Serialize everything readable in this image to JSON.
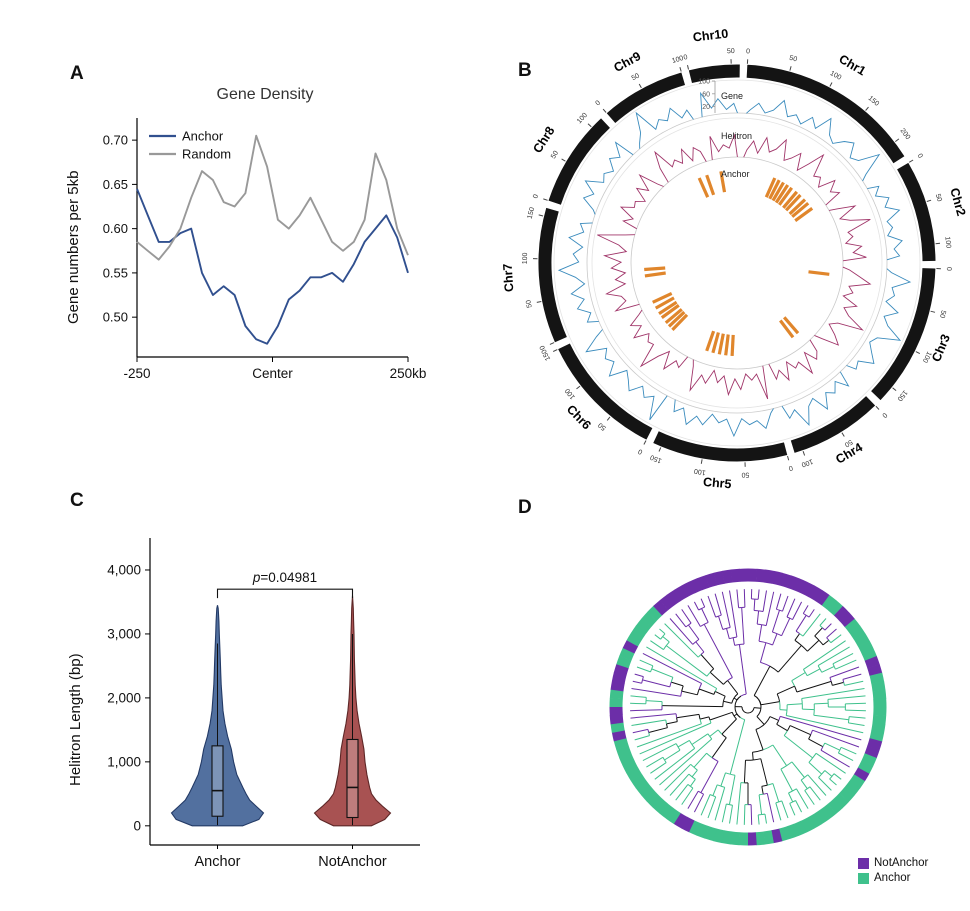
{
  "figure": {
    "background": "#ffffff",
    "panels": {
      "a_label": "A",
      "b_label": "B",
      "c_label": "C",
      "d_label": "D"
    }
  },
  "chart_data": [
    {
      "id": "gene_density",
      "type": "line",
      "title": "Gene Density",
      "ylabel": "Gene numbers per 5kb",
      "xlim": [
        -250,
        250
      ],
      "ylim": [
        0.455,
        0.725
      ],
      "yticks": [
        0.5,
        0.55,
        0.6,
        0.65,
        0.7
      ],
      "xticks": [
        {
          "v": -250,
          "label": "-250"
        },
        {
          "v": 0,
          "label": "Center"
        },
        {
          "v": 250,
          "label": "250kb"
        }
      ],
      "x": [
        -250,
        -230,
        -210,
        -190,
        -170,
        -150,
        -130,
        -110,
        -90,
        -70,
        -50,
        -30,
        -10,
        10,
        30,
        50,
        70,
        90,
        110,
        130,
        150,
        170,
        190,
        210,
        230,
        250
      ],
      "series": [
        {
          "name": "Anchor",
          "color": "#31508f",
          "values": [
            0.645,
            0.615,
            0.585,
            0.585,
            0.595,
            0.6,
            0.55,
            0.525,
            0.535,
            0.525,
            0.49,
            0.475,
            0.47,
            0.49,
            0.52,
            0.53,
            0.545,
            0.545,
            0.55,
            0.54,
            0.56,
            0.585,
            0.6,
            0.615,
            0.59,
            0.55
          ]
        },
        {
          "name": "Random",
          "color": "#999999",
          "values": [
            0.585,
            0.575,
            0.565,
            0.58,
            0.6,
            0.635,
            0.665,
            0.655,
            0.63,
            0.625,
            0.64,
            0.705,
            0.67,
            0.61,
            0.6,
            0.615,
            0.635,
            0.61,
            0.585,
            0.575,
            0.585,
            0.61,
            0.685,
            0.655,
            0.6,
            0.57
          ]
        }
      ],
      "legend_position": "top-left"
    },
    {
      "id": "circos",
      "type": "circos",
      "tick_interval": 50,
      "chromosomes": [
        {
          "name": "Chr1",
          "size": 220
        },
        {
          "name": "Chr2",
          "size": 120
        },
        {
          "name": "Chr3",
          "size": 170
        },
        {
          "name": "Chr4",
          "size": 110
        },
        {
          "name": "Chr5",
          "size": 160
        },
        {
          "name": "Chr6",
          "size": 150
        },
        {
          "name": "Chr7",
          "size": 160
        },
        {
          "name": "Chr8",
          "size": 115
        },
        {
          "name": "Chr9",
          "size": 100
        },
        {
          "name": "Chr10",
          "size": 60
        }
      ],
      "tracks": [
        {
          "name": "Gene",
          "color": "#3a8bbd",
          "scale_ticks": [
            100,
            60,
            20
          ],
          "values": [
            12,
            35,
            8,
            22,
            60,
            15,
            30,
            9,
            44,
            18,
            70,
            25,
            10,
            38,
            55,
            14,
            28,
            90,
            20,
            35,
            12,
            48,
            26,
            65,
            18,
            30,
            10,
            52,
            24,
            40,
            15,
            75,
            22,
            34,
            12,
            58,
            20,
            42,
            95,
            28,
            14,
            36,
            62,
            18,
            30,
            50,
            12,
            40,
            22,
            68,
            16,
            32,
            85,
            24,
            44,
            12,
            56,
            28,
            38,
            18,
            72,
            20,
            34,
            10,
            48,
            26,
            60,
            14,
            36,
            92,
            22,
            42,
            16,
            54,
            30,
            12,
            64,
            24,
            40,
            18,
            78,
            28,
            34,
            14,
            50,
            22,
            58,
            12,
            38,
            88,
            26,
            44,
            16,
            62,
            20,
            36,
            10,
            52,
            28,
            70,
            18,
            32,
            12,
            46,
            24,
            66,
            14,
            38,
            96,
            20,
            42,
            26,
            58,
            16,
            34,
            74,
            22,
            48,
            12,
            30
          ]
        },
        {
          "name": "Helitron",
          "color": "#a03569",
          "values": [
            20,
            45,
            15,
            60,
            25,
            38,
            70,
            18,
            32,
            55,
            12,
            42,
            85,
            26,
            36,
            14,
            58,
            30,
            48,
            20,
            66,
            16,
            40,
            90,
            24,
            34,
            12,
            52,
            28,
            62,
            18,
            44,
            76,
            22,
            36,
            14,
            56,
            26,
            46,
            95,
            30,
            12,
            40,
            64,
            20,
            34,
            50,
            16,
            72,
            28,
            38,
            12,
            58,
            24,
            44,
            88,
            18,
            32,
            14,
            54,
            26,
            68,
            20,
            40,
            10,
            48,
            30,
            78,
            16,
            36,
            24,
            60,
            14,
            42,
            92,
            28,
            34,
            18,
            56,
            22,
            46,
            12,
            64,
            30,
            38,
            74,
            20,
            44,
            16,
            52,
            26,
            70,
            14,
            36,
            96,
            24,
            40,
            18,
            60,
            28,
            34,
            12,
            50,
            22,
            66,
            16,
            42,
            84,
            26,
            38,
            20,
            54,
            14,
            46,
            30,
            62,
            18,
            34,
            24,
            58
          ]
        },
        {
          "name": "Anchor",
          "color": "#e0862c",
          "type": "marks",
          "angles": [
            24,
            27,
            30,
            33,
            36,
            40,
            43,
            47,
            50,
            54,
            97,
            139,
            143,
            183,
            187,
            191,
            195,
            199,
            224,
            227,
            230,
            234,
            237,
            241,
            245,
            262,
            266,
            336,
            341,
            350
          ]
        }
      ]
    },
    {
      "id": "helitron_length",
      "type": "violin",
      "ylabel": "Helitron Length (bp)",
      "ylim": [
        -300,
        4500
      ],
      "yticks": [
        {
          "v": 0,
          "label": "0"
        },
        {
          "v": 1000,
          "label": "1,000"
        },
        {
          "v": 2000,
          "label": "2,000"
        },
        {
          "v": 3000,
          "label": "3,000"
        },
        {
          "v": 4000,
          "label": "4,000"
        }
      ],
      "categories": [
        "Anchor",
        "NotAnchor"
      ],
      "p_label_italic": "p",
      "p_label_rest": "=0.04981",
      "violins": [
        {
          "name": "Anchor",
          "fill": "#52709f",
          "edge": "#233a66",
          "max_half_width": 46,
          "lengths": [
            0,
            100,
            200,
            300,
            400,
            500,
            600,
            800,
            1000,
            1200,
            1400,
            1600,
            1800,
            2000,
            2200,
            2400,
            2600,
            2800,
            3000,
            3200,
            3400,
            3450
          ],
          "widths": [
            0.55,
            0.9,
            1.0,
            0.85,
            0.7,
            0.62,
            0.55,
            0.42,
            0.35,
            0.3,
            0.22,
            0.16,
            0.12,
            0.1,
            0.08,
            0.07,
            0.06,
            0.05,
            0.04,
            0.03,
            0.015,
            0.0
          ],
          "box": {
            "q1": 150,
            "median": 550,
            "q3": 1250,
            "whisker_low": 10,
            "whisker_high": 2850
          }
        },
        {
          "name": "NotAnchor",
          "fill": "#a85252",
          "edge": "#5e2727",
          "max_half_width": 38,
          "lengths": [
            0,
            100,
            200,
            300,
            400,
            500,
            600,
            800,
            1000,
            1200,
            1400,
            1600,
            1800,
            2000,
            2200,
            2400,
            2600,
            2800,
            3000,
            3200,
            3400,
            3600
          ],
          "widths": [
            0.5,
            0.85,
            1.0,
            0.8,
            0.62,
            0.5,
            0.45,
            0.38,
            0.33,
            0.3,
            0.24,
            0.17,
            0.12,
            0.09,
            0.07,
            0.06,
            0.05,
            0.045,
            0.04,
            0.03,
            0.02,
            0.0
          ],
          "box": {
            "q1": 130,
            "median": 600,
            "q3": 1350,
            "whisker_low": 10,
            "whisker_high": 3000
          }
        }
      ]
    },
    {
      "id": "phylo_tree",
      "type": "circular-tree",
      "seed": 11,
      "branch_color_default": "#111111",
      "legend": [
        {
          "label": "NotAnchor",
          "color": "#6c2ea8"
        },
        {
          "label": "Anchor",
          "color": "#3fc18c"
        }
      ],
      "leaf_classes": "NNNNNNNNNNAANNAAAAANNAAAAAAAANNAANAAAAAAAAAAAANAANAAAAAAANNAAAAAAAAAAAANANNAANNNAANAAAAANNNNNNNNNNNN"
    }
  ]
}
